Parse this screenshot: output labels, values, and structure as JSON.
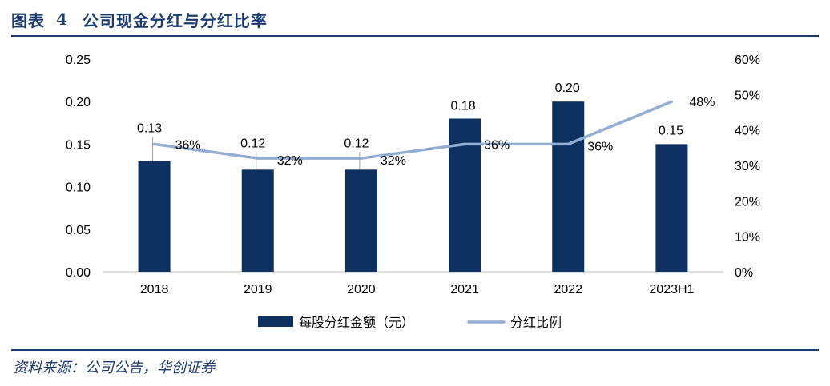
{
  "header": {
    "label": "图表",
    "number": "4",
    "title": "公司现金分红与分红比率"
  },
  "source": "资料来源：公司公告，华创证券",
  "colors": {
    "bar": "#0d3060",
    "line": "#93aed2",
    "accent": "#1c3a6e"
  },
  "chart_data": {
    "type": "bar",
    "title": "公司现金分红与分红比率",
    "categories": [
      "2018",
      "2019",
      "2020",
      "2021",
      "2022",
      "2023H1"
    ],
    "series": [
      {
        "name": "每股分红金额（元）",
        "type": "bar",
        "axis": "left",
        "values": [
          0.13,
          0.12,
          0.12,
          0.18,
          0.2,
          0.15
        ],
        "labels": [
          "0.13",
          "0.12",
          "0.12",
          "0.18",
          "0.20",
          "0.15"
        ]
      },
      {
        "name": "分红比例",
        "type": "line",
        "axis": "right",
        "values": [
          0.36,
          0.32,
          0.32,
          0.36,
          0.36,
          0.48
        ],
        "labels": [
          "36%",
          "32%",
          "32%",
          "36%",
          "36%",
          "48%"
        ]
      }
    ],
    "y_left": {
      "min": 0,
      "max": 0.25,
      "ticks": [
        "0.00",
        "0.05",
        "0.10",
        "0.15",
        "0.20",
        "0.25"
      ]
    },
    "y_right": {
      "min": 0,
      "max": 0.6,
      "ticks": [
        "0%",
        "10%",
        "20%",
        "30%",
        "40%",
        "50%",
        "60%"
      ]
    },
    "grid": false,
    "legend": "bottom"
  }
}
